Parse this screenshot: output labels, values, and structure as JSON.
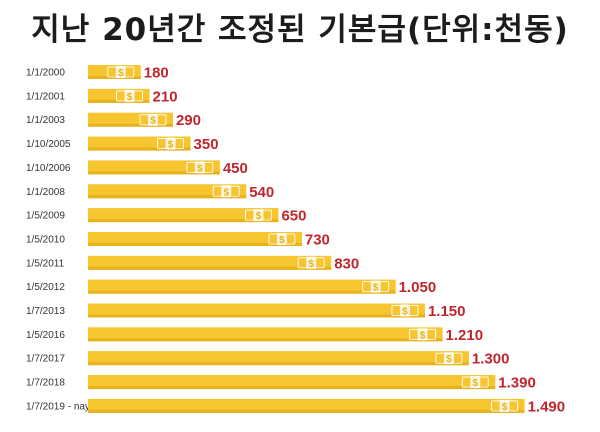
{
  "chart_data": {
    "type": "bar",
    "orientation": "horizontal",
    "title": "지난 20년간 조정된 기본급(단위:천동)",
    "categories": [
      "1/1/2000",
      "1/1/2001",
      "1/1/2003",
      "1/10/2005",
      "1/10/2006",
      "1/1/2008",
      "1/5/2009",
      "1/5/2010",
      "1/5/2011",
      "1/5/2012",
      "1/7/2013",
      "1/5/2016",
      "1/7/2017",
      "1/7/2018",
      "1/7/2019 - nay"
    ],
    "values": [
      180,
      210,
      290,
      350,
      450,
      540,
      650,
      730,
      830,
      1050,
      1150,
      1210,
      1300,
      1390,
      1490
    ],
    "value_labels": [
      "180",
      "210",
      "290",
      "350",
      "450",
      "540",
      "650",
      "730",
      "830",
      "1.050",
      "1.150",
      "1.210",
      "1.300",
      "1.390",
      "1.490"
    ],
    "bar_icon": "dollar-bill-icon",
    "bar_icon_text": "$",
    "colors": {
      "bar": "#f6c530",
      "bar_shade": "#e8b21c",
      "value_text": "#c0262d",
      "date_text": "#333333"
    }
  }
}
